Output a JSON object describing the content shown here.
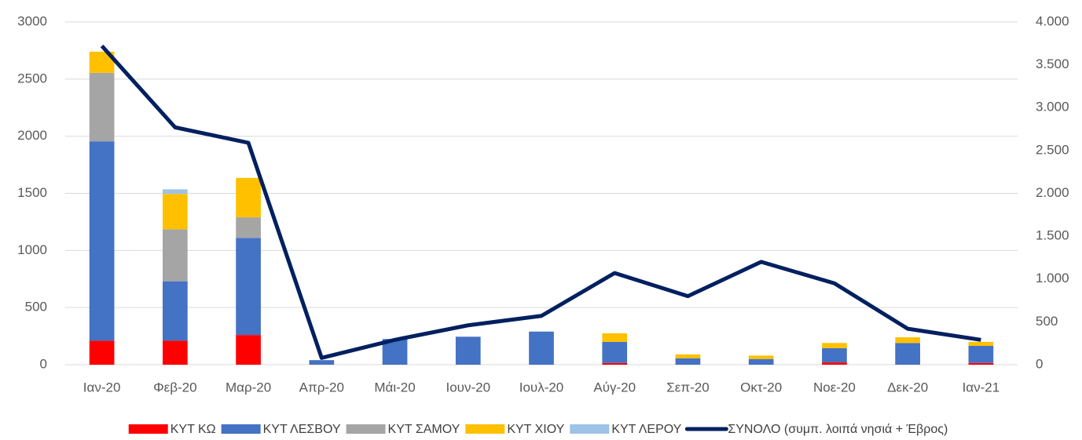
{
  "chart_data": {
    "type": "bar",
    "categories": [
      "Ιαν-20",
      "Φεβ-20",
      "Μαρ-20",
      "Απρ-20",
      "Μάι-20",
      "Ιουν-20",
      "Ιουλ-20",
      "Αύγ-20",
      "Σεπ-20",
      "Οκτ-20",
      "Νοε-20",
      "Δεκ-20",
      "Ιαν-21"
    ],
    "stacked": true,
    "series": [
      {
        "name": "ΚΥΤ ΚΩ",
        "color": "#ff0000",
        "type": "bar",
        "values": [
          210,
          210,
          260,
          0,
          0,
          0,
          0,
          15,
          0,
          0,
          20,
          0,
          15
        ]
      },
      {
        "name": "ΚΥΤ ΛΕΣΒΟΥ",
        "color": "#4472c4",
        "type": "bar",
        "values": [
          1745,
          520,
          850,
          40,
          225,
          245,
          290,
          185,
          55,
          50,
          125,
          190,
          150
        ]
      },
      {
        "name": "ΚΥΤ ΣΑΜΟΥ",
        "color": "#a5a5a5",
        "type": "bar",
        "values": [
          600,
          455,
          180,
          0,
          0,
          0,
          0,
          0,
          0,
          0,
          0,
          0,
          0
        ]
      },
      {
        "name": "ΚΥΤ ΧΙΟΥ",
        "color": "#ffc000",
        "type": "bar",
        "values": [
          185,
          310,
          345,
          0,
          0,
          0,
          0,
          75,
          35,
          30,
          45,
          50,
          35
        ]
      },
      {
        "name": "ΚΥΤ ΛΕΡΟΥ",
        "color": "#9dc3e6",
        "type": "bar",
        "values": [
          0,
          40,
          0,
          0,
          0,
          0,
          0,
          0,
          0,
          0,
          0,
          0,
          0
        ]
      },
      {
        "name": "ΣΥΝΟΛΟ (συμπ. λοιπά νησιά + Έβρος)",
        "color": "#002060",
        "type": "line",
        "axis": "y2",
        "values": [
          3720,
          2770,
          2590,
          80,
          290,
          460,
          570,
          1070,
          800,
          1200,
          950,
          420,
          290
        ]
      }
    ],
    "ylim": [
      0,
      3000
    ],
    "yticks": [
      0,
      500,
      1000,
      1500,
      2000,
      2500,
      3000
    ],
    "y2lim": [
      0,
      4000
    ],
    "y2ticks": [
      0,
      500,
      {
        "value": 1000,
        "label": "1.000"
      },
      {
        "value": 1500,
        "label": "1.500"
      },
      {
        "value": 2000,
        "label": "2.000"
      },
      {
        "value": 2500,
        "label": "2.500"
      },
      {
        "value": 3000,
        "label": "3.000"
      },
      {
        "value": 3500,
        "label": "3.500"
      },
      {
        "value": 4000,
        "label": "4.000"
      }
    ],
    "grid": true,
    "legend": "bottom"
  }
}
